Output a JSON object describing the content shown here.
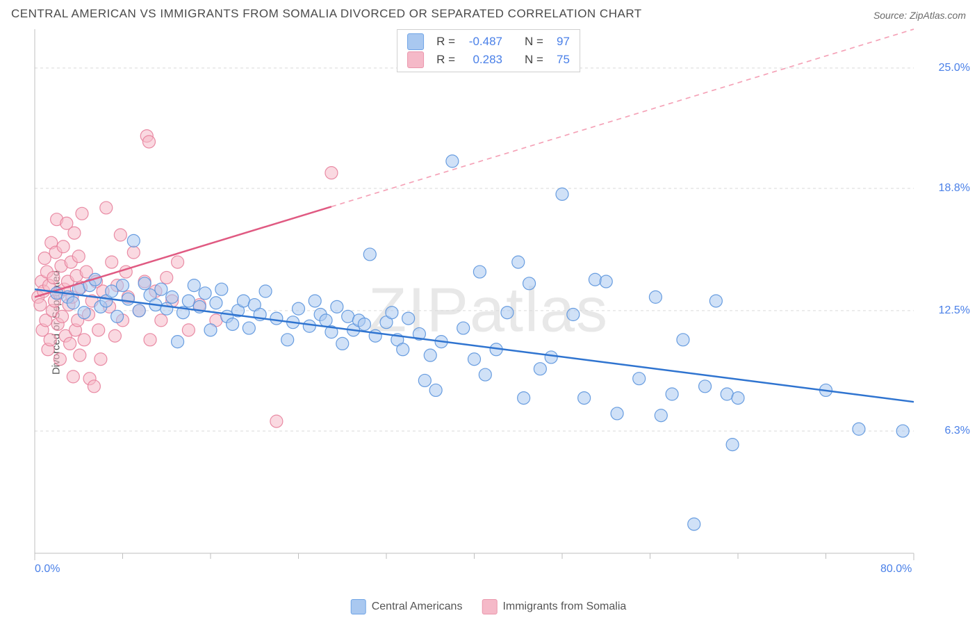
{
  "header": {
    "title": "CENTRAL AMERICAN VS IMMIGRANTS FROM SOMALIA DIVORCED OR SEPARATED CORRELATION CHART",
    "source": "Source: ZipAtlas.com"
  },
  "chart": {
    "type": "scatter",
    "watermark": "ZIPatlas",
    "ylabel": "Divorced or Separated",
    "background_color": "#ffffff",
    "grid_color": "#d9d9d9",
    "axis_color": "#bfbfbf",
    "xlim": [
      0,
      80
    ],
    "ylim": [
      0,
      27
    ],
    "xticks_major": [
      0,
      80
    ],
    "xticks_minor": [
      8,
      16,
      24,
      32,
      40,
      48,
      56,
      64,
      72
    ],
    "x_tick_labels": [
      "0.0%",
      "80.0%"
    ],
    "yticks": [
      6.3,
      12.5,
      18.8,
      25.0
    ],
    "y_tick_labels": [
      "6.3%",
      "12.5%",
      "18.8%",
      "25.0%"
    ],
    "y_label_color": "#4a80e8",
    "x_label_color": "#4a80e8",
    "marker_radius": 9,
    "marker_opacity": 0.55,
    "line_width": 2.5,
    "stats_box": {
      "rows": [
        {
          "swatch_fill": "#a9c8f0",
          "swatch_stroke": "#6ea3e6",
          "r_label": "R =",
          "r_value": "-0.487",
          "n_label": "N =",
          "n_value": "97"
        },
        {
          "swatch_fill": "#f5b9c8",
          "swatch_stroke": "#ea95ab",
          "r_label": "R =",
          "r_value": "0.283",
          "n_label": "N =",
          "n_value": "75"
        }
      ]
    },
    "legend": [
      {
        "label": "Central Americans",
        "fill": "#a9c8f0",
        "stroke": "#6ea3e6"
      },
      {
        "label": "Immigrants from Somalia",
        "fill": "#f5b9c8",
        "stroke": "#ea95ab"
      }
    ],
    "series": [
      {
        "name": "Central Americans",
        "marker_fill": "#a9c8f0",
        "marker_stroke": "#5a94dd",
        "line_color": "#2f74d0",
        "dash_color": "#2f74d0",
        "trend": {
          "x1": 0,
          "y1": 13.6,
          "x2": 80,
          "y2": 7.8,
          "x_solid_end": 80
        },
        "points": [
          [
            2,
            13.4
          ],
          [
            3,
            13.2
          ],
          [
            3.5,
            12.9
          ],
          [
            4,
            13.6
          ],
          [
            4.5,
            12.4
          ],
          [
            5,
            13.8
          ],
          [
            5.5,
            14.1
          ],
          [
            6,
            12.7
          ],
          [
            6.5,
            13.0
          ],
          [
            7,
            13.5
          ],
          [
            7.5,
            12.2
          ],
          [
            8,
            13.8
          ],
          [
            8.5,
            13.1
          ],
          [
            9,
            16.1
          ],
          [
            9.5,
            12.5
          ],
          [
            10,
            13.9
          ],
          [
            10.5,
            13.3
          ],
          [
            11,
            12.8
          ],
          [
            11.5,
            13.6
          ],
          [
            12,
            12.6
          ],
          [
            12.5,
            13.2
          ],
          [
            13,
            10.9
          ],
          [
            13.5,
            12.4
          ],
          [
            14,
            13.0
          ],
          [
            14.5,
            13.8
          ],
          [
            15,
            12.7
          ],
          [
            15.5,
            13.4
          ],
          [
            16,
            11.5
          ],
          [
            16.5,
            12.9
          ],
          [
            17,
            13.6
          ],
          [
            17.5,
            12.2
          ],
          [
            18,
            11.8
          ],
          [
            18.5,
            12.5
          ],
          [
            19,
            13.0
          ],
          [
            19.5,
            11.6
          ],
          [
            20,
            12.8
          ],
          [
            20.5,
            12.3
          ],
          [
            21,
            13.5
          ],
          [
            22,
            12.1
          ],
          [
            23,
            11.0
          ],
          [
            23.5,
            11.9
          ],
          [
            24,
            12.6
          ],
          [
            25,
            11.7
          ],
          [
            25.5,
            13.0
          ],
          [
            26,
            12.3
          ],
          [
            26.5,
            12.0
          ],
          [
            27,
            11.4
          ],
          [
            27.5,
            12.7
          ],
          [
            28,
            10.8
          ],
          [
            28.5,
            12.2
          ],
          [
            29,
            11.5
          ],
          [
            29.5,
            12.0
          ],
          [
            30,
            11.8
          ],
          [
            30.5,
            15.4
          ],
          [
            31,
            11.2
          ],
          [
            32,
            11.9
          ],
          [
            32.5,
            12.4
          ],
          [
            33,
            11.0
          ],
          [
            33.5,
            10.5
          ],
          [
            34,
            12.1
          ],
          [
            35,
            11.3
          ],
          [
            35.5,
            8.9
          ],
          [
            36,
            10.2
          ],
          [
            36.5,
            8.4
          ],
          [
            37,
            10.9
          ],
          [
            38,
            20.2
          ],
          [
            39,
            11.6
          ],
          [
            40,
            10.0
          ],
          [
            40.5,
            14.5
          ],
          [
            41,
            9.2
          ],
          [
            42,
            10.5
          ],
          [
            43,
            12.4
          ],
          [
            44,
            15.0
          ],
          [
            44.5,
            8.0
          ],
          [
            45,
            13.9
          ],
          [
            46,
            9.5
          ],
          [
            47,
            10.1
          ],
          [
            48,
            18.5
          ],
          [
            49,
            12.3
          ],
          [
            50,
            8.0
          ],
          [
            51,
            14.1
          ],
          [
            52,
            14.0
          ],
          [
            53,
            7.2
          ],
          [
            55,
            9.0
          ],
          [
            56.5,
            13.2
          ],
          [
            57,
            7.1
          ],
          [
            58,
            8.2
          ],
          [
            59,
            11.0
          ],
          [
            60,
            1.5
          ],
          [
            61,
            8.6
          ],
          [
            62,
            13.0
          ],
          [
            63,
            8.2
          ],
          [
            63.5,
            5.6
          ],
          [
            64,
            8.0
          ],
          [
            72,
            8.4
          ],
          [
            75,
            6.4
          ],
          [
            79,
            6.3
          ]
        ]
      },
      {
        "name": "Immigrants from Somalia",
        "marker_fill": "#f5b9c8",
        "marker_stroke": "#e77f9b",
        "line_color": "#e05a82",
        "dash_color": "#f5a2b7",
        "trend": {
          "x1": 0,
          "y1": 13.2,
          "x2": 80,
          "y2": 27.0,
          "x_solid_end": 27
        },
        "points": [
          [
            0.3,
            13.2
          ],
          [
            0.5,
            12.8
          ],
          [
            0.6,
            14.0
          ],
          [
            0.7,
            11.5
          ],
          [
            0.8,
            13.5
          ],
          [
            0.9,
            15.2
          ],
          [
            1.0,
            12.0
          ],
          [
            1.1,
            14.5
          ],
          [
            1.2,
            10.5
          ],
          [
            1.3,
            13.8
          ],
          [
            1.4,
            11.0
          ],
          [
            1.5,
            16.0
          ],
          [
            1.6,
            12.5
          ],
          [
            1.7,
            14.2
          ],
          [
            1.8,
            13.0
          ],
          [
            1.9,
            15.5
          ],
          [
            2.0,
            17.2
          ],
          [
            2.1,
            11.8
          ],
          [
            2.2,
            13.4
          ],
          [
            2.3,
            10.0
          ],
          [
            2.4,
            14.8
          ],
          [
            2.5,
            12.2
          ],
          [
            2.6,
            15.8
          ],
          [
            2.7,
            13.6
          ],
          [
            2.8,
            11.2
          ],
          [
            2.9,
            17.0
          ],
          [
            3.0,
            14.0
          ],
          [
            3.1,
            12.8
          ],
          [
            3.2,
            10.8
          ],
          [
            3.3,
            15.0
          ],
          [
            3.4,
            13.2
          ],
          [
            3.5,
            9.1
          ],
          [
            3.6,
            16.5
          ],
          [
            3.7,
            11.5
          ],
          [
            3.8,
            14.3
          ],
          [
            3.9,
            12.0
          ],
          [
            4.0,
            15.3
          ],
          [
            4.1,
            10.2
          ],
          [
            4.2,
            13.7
          ],
          [
            4.3,
            17.5
          ],
          [
            4.5,
            11.0
          ],
          [
            4.7,
            14.5
          ],
          [
            4.9,
            12.3
          ],
          [
            5.0,
            9.0
          ],
          [
            5.2,
            13.0
          ],
          [
            5.4,
            8.6
          ],
          [
            5.6,
            14.0
          ],
          [
            5.8,
            11.5
          ],
          [
            6.0,
            10.0
          ],
          [
            6.2,
            13.5
          ],
          [
            6.5,
            17.8
          ],
          [
            6.8,
            12.7
          ],
          [
            7.0,
            15.0
          ],
          [
            7.3,
            11.2
          ],
          [
            7.5,
            13.8
          ],
          [
            7.8,
            16.4
          ],
          [
            8.0,
            12.0
          ],
          [
            8.3,
            14.5
          ],
          [
            8.5,
            13.2
          ],
          [
            9.0,
            15.5
          ],
          [
            9.5,
            12.5
          ],
          [
            10.0,
            14.0
          ],
          [
            10.2,
            21.5
          ],
          [
            10.4,
            21.2
          ],
          [
            10.5,
            11.0
          ],
          [
            11.0,
            13.5
          ],
          [
            11.5,
            12.0
          ],
          [
            12.0,
            14.2
          ],
          [
            12.5,
            13.0
          ],
          [
            13.0,
            15.0
          ],
          [
            14.0,
            11.5
          ],
          [
            15.0,
            12.8
          ],
          [
            16.5,
            12.0
          ],
          [
            22.0,
            6.8
          ],
          [
            27.0,
            19.6
          ]
        ]
      }
    ]
  }
}
